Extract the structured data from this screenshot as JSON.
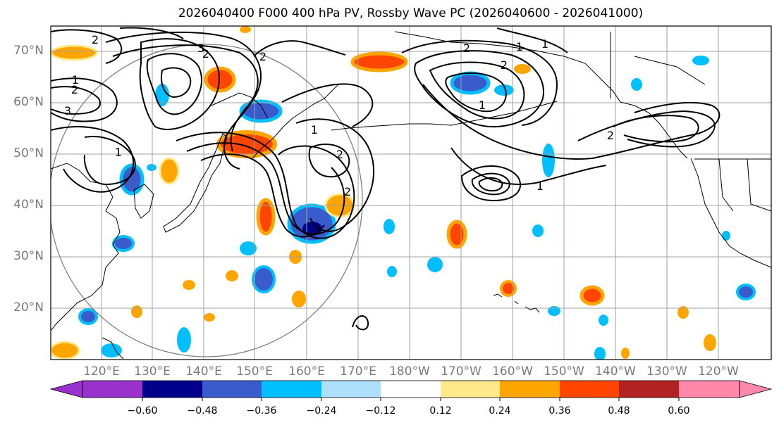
{
  "title": "2026040400 F000 400 hPa PV, Rossby Wave PC (2026040600 - 2026041000)",
  "lat_labels": [
    "70°N",
    "60°N",
    "50°N",
    "40°N",
    "30°N",
    "20°N"
  ],
  "lon_labels": [
    "120°E",
    "130°E",
    "140°E",
    "150°E",
    "160°E",
    "170°E",
    "180°W",
    "170°W",
    "160°W",
    "150°W",
    "140°W",
    "130°W",
    "120°W"
  ],
  "colorbar": {
    "ticks": [
      "−0.60",
      "−0.48",
      "−0.36",
      "−0.24",
      "−0.12",
      "0.12",
      "0.24",
      "0.36",
      "0.48",
      "0.60"
    ],
    "colors": [
      "#9932cc",
      "#00008b",
      "#3a5bcc",
      "#00bfff",
      "#aee0fb",
      "#ffffff",
      "#ffe98a",
      "#ffa500",
      "#ff4500",
      "#b22222",
      "#ff88aa"
    ]
  },
  "contour_labels": [
    "1",
    "2",
    "3",
    "1",
    "2",
    "3",
    "2",
    "1",
    "2",
    "2",
    "1",
    "2",
    "1",
    "2",
    "1",
    "2",
    "1",
    "2"
  ],
  "colors": {
    "grid": "#a0a0a0",
    "label": "#7a7a7a",
    "contour": "#000000"
  }
}
